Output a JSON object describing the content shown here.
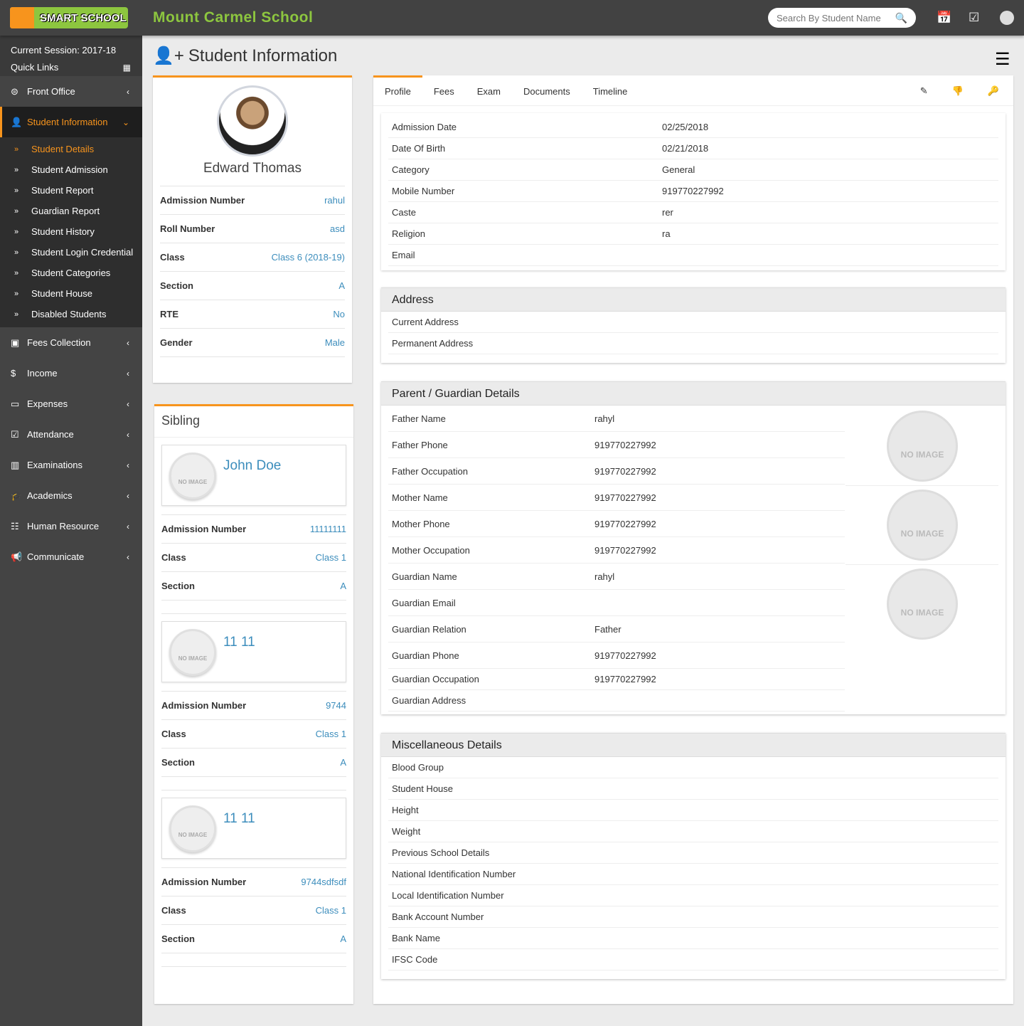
{
  "header": {
    "logo_text": "SMART SCHOOL",
    "school_name": "Mount Carmel School",
    "search_placeholder": "Search By Student Name",
    "icons": [
      "calendar-icon",
      "checkbox-icon",
      "user-avatar-icon"
    ]
  },
  "sidebar": {
    "session": "Current Session: 2017-18",
    "quick_links": "Quick Links",
    "items_top": [
      {
        "label": "Front Office",
        "icon": "ticket-icon"
      }
    ],
    "active": {
      "label": "Student Information",
      "icon": "user-plus-icon"
    },
    "sub": [
      "Student Details",
      "Student Admission",
      "Student Report",
      "Guardian Report",
      "Student History",
      "Student Login Credential",
      "Student Categories",
      "Student House",
      "Disabled Students"
    ],
    "items": [
      {
        "label": "Fees Collection",
        "icon": "money-icon"
      },
      {
        "label": "Income",
        "icon": "dollar-icon"
      },
      {
        "label": "Expenses",
        "icon": "credit-card-icon"
      },
      {
        "label": "Attendance",
        "icon": "calendar-check-icon"
      },
      {
        "label": "Examinations",
        "icon": "map-icon"
      },
      {
        "label": "Academics",
        "icon": "graduation-cap-icon"
      },
      {
        "label": "Human Resource",
        "icon": "sitemap-icon"
      },
      {
        "label": "Communicate",
        "icon": "bullhorn-icon"
      }
    ]
  },
  "page": {
    "title": "Student Information"
  },
  "profile": {
    "name": "Edward Thomas",
    "fields": [
      {
        "k": "Admission Number",
        "v": "rahul"
      },
      {
        "k": "Roll Number",
        "v": "asd"
      },
      {
        "k": "Class",
        "v": "Class 6 (2018-19)"
      },
      {
        "k": "Section",
        "v": "A"
      },
      {
        "k": "RTE",
        "v": "No"
      },
      {
        "k": "Gender",
        "v": "Male"
      }
    ]
  },
  "sibling": {
    "title": "Sibling",
    "no_image": "NO IMAGE",
    "items": [
      {
        "name": "John Doe",
        "fields": [
          {
            "k": "Admission Number",
            "v": "11111111"
          },
          {
            "k": "Class",
            "v": "Class 1"
          },
          {
            "k": "Section",
            "v": "A"
          }
        ]
      },
      {
        "name": "11 11",
        "fields": [
          {
            "k": "Admission Number",
            "v": "9744"
          },
          {
            "k": "Class",
            "v": "Class 1"
          },
          {
            "k": "Section",
            "v": "A"
          }
        ]
      },
      {
        "name": "11 11",
        "fields": [
          {
            "k": "Admission Number",
            "v": "9744sdfsdf"
          },
          {
            "k": "Class",
            "v": "Class 1"
          },
          {
            "k": "Section",
            "v": "A"
          }
        ]
      }
    ]
  },
  "tabs": [
    "Profile",
    "Fees",
    "Exam",
    "Documents",
    "Timeline"
  ],
  "tab_actions": [
    "edit-icon",
    "disable-icon",
    "key-icon"
  ],
  "details": [
    {
      "k": "Admission Date",
      "v": "02/25/2018"
    },
    {
      "k": "Date Of Birth",
      "v": "02/21/2018"
    },
    {
      "k": "Category",
      "v": "General"
    },
    {
      "k": "Mobile Number",
      "v": "919770227992"
    },
    {
      "k": "Caste",
      "v": "rer"
    },
    {
      "k": "Religion",
      "v": "ra"
    },
    {
      "k": "Email",
      "v": ""
    }
  ],
  "address": {
    "title": "Address",
    "rows": [
      {
        "k": "Current Address",
        "v": ""
      },
      {
        "k": "Permanent Address",
        "v": ""
      }
    ]
  },
  "guardian": {
    "title": "Parent / Guardian Details",
    "no_image": "NO IMAGE",
    "rows": [
      {
        "k": "Father Name",
        "v": "rahyl"
      },
      {
        "k": "Father Phone",
        "v": "919770227992"
      },
      {
        "k": "Father Occupation",
        "v": "919770227992"
      },
      {
        "k": "Mother Name",
        "v": "919770227992"
      },
      {
        "k": "Mother Phone",
        "v": "919770227992"
      },
      {
        "k": "Mother Occupation",
        "v": "919770227992"
      },
      {
        "k": "Guardian Name",
        "v": "rahyl"
      },
      {
        "k": "Guardian Email",
        "v": ""
      },
      {
        "k": "Guardian Relation",
        "v": "Father"
      },
      {
        "k": "Guardian Phone",
        "v": "919770227992"
      },
      {
        "k": "Guardian Occupation",
        "v": "919770227992"
      },
      {
        "k": "Guardian Address",
        "v": ""
      }
    ]
  },
  "misc": {
    "title": "Miscellaneous Details",
    "rows": [
      {
        "k": "Blood Group",
        "v": ""
      },
      {
        "k": "Student House",
        "v": ""
      },
      {
        "k": "Height",
        "v": ""
      },
      {
        "k": "Weight",
        "v": ""
      },
      {
        "k": "Previous School Details",
        "v": ""
      },
      {
        "k": "National Identification Number",
        "v": ""
      },
      {
        "k": "Local Identification Number",
        "v": ""
      },
      {
        "k": "Bank Account Number",
        "v": ""
      },
      {
        "k": "Bank Name",
        "v": ""
      },
      {
        "k": "IFSC Code",
        "v": ""
      }
    ]
  },
  "colors": {
    "accent": "#f7941d",
    "brand_green": "#8dc63f",
    "link": "#3c8dbc",
    "sidebar": "#444444"
  }
}
